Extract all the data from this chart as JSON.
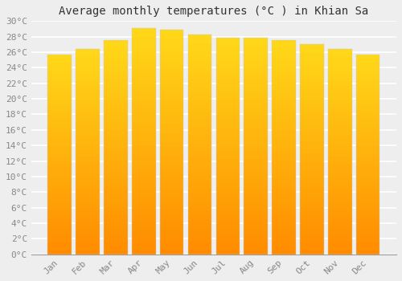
{
  "title": "Average monthly temperatures (°C ) in Khian Sa",
  "months": [
    "Jan",
    "Feb",
    "Mar",
    "Apr",
    "May",
    "Jun",
    "Jul",
    "Aug",
    "Sep",
    "Oct",
    "Nov",
    "Dec"
  ],
  "values": [
    25.7,
    26.4,
    27.5,
    29.1,
    28.9,
    28.3,
    27.9,
    27.9,
    27.5,
    27.0,
    26.4,
    25.7
  ],
  "bar_color": "#FFA500",
  "bar_color_light": "#FFD060",
  "bar_color_dark": "#FF8C00",
  "ylim": [
    0,
    30
  ],
  "ytick_step": 2,
  "background_color": "#eeeeee",
  "grid_color": "#ffffff",
  "title_fontsize": 10,
  "tick_fontsize": 8,
  "font_family": "monospace"
}
